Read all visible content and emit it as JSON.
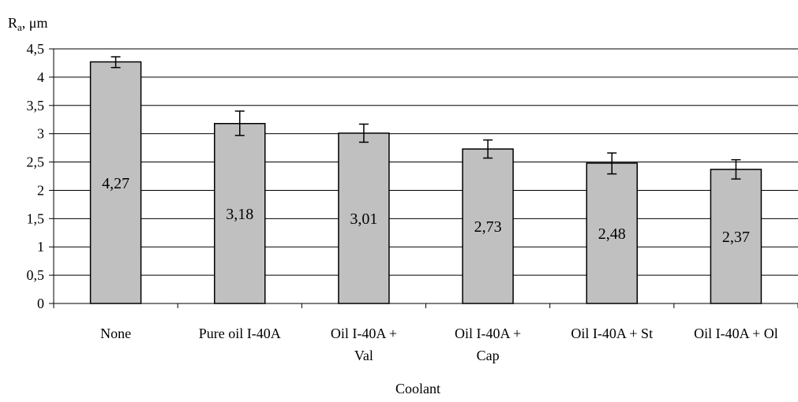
{
  "chart_data": {
    "type": "bar",
    "ylabel_main": "R",
    "ylabel_sub": "a",
    "ylabel_unit": ", μm",
    "xlabel": "Coolant",
    "ylim": [
      0,
      4.5
    ],
    "ytick_values": [
      0,
      0.5,
      1,
      1.5,
      2,
      2.5,
      3,
      3.5,
      4,
      4.5
    ],
    "ytick_labels": [
      "0",
      "0,5",
      "1",
      "1,5",
      "2",
      "2,5",
      "3",
      "3,5",
      "4",
      "4,5"
    ],
    "grid": true,
    "categories": [
      [
        "None"
      ],
      [
        "Pure oil I-40A"
      ],
      [
        "Oil I-40A +",
        "Val"
      ],
      [
        "Oil I-40A +",
        "Cap"
      ],
      [
        "Oil I-40A + St"
      ],
      [
        "Oil I-40A + Ol"
      ]
    ],
    "values": [
      4.27,
      3.18,
      3.01,
      2.73,
      2.48,
      2.37
    ],
    "value_labels": [
      "4,27",
      "3,18",
      "3,01",
      "2,73",
      "2,48",
      "2,37"
    ],
    "error_low": [
      4.17,
      2.97,
      2.85,
      2.57,
      2.29,
      2.2
    ],
    "error_high": [
      4.36,
      3.4,
      3.17,
      2.89,
      2.66,
      2.54
    ],
    "bar_color": "#c0c0c0",
    "bar_border_color": "#000000"
  }
}
